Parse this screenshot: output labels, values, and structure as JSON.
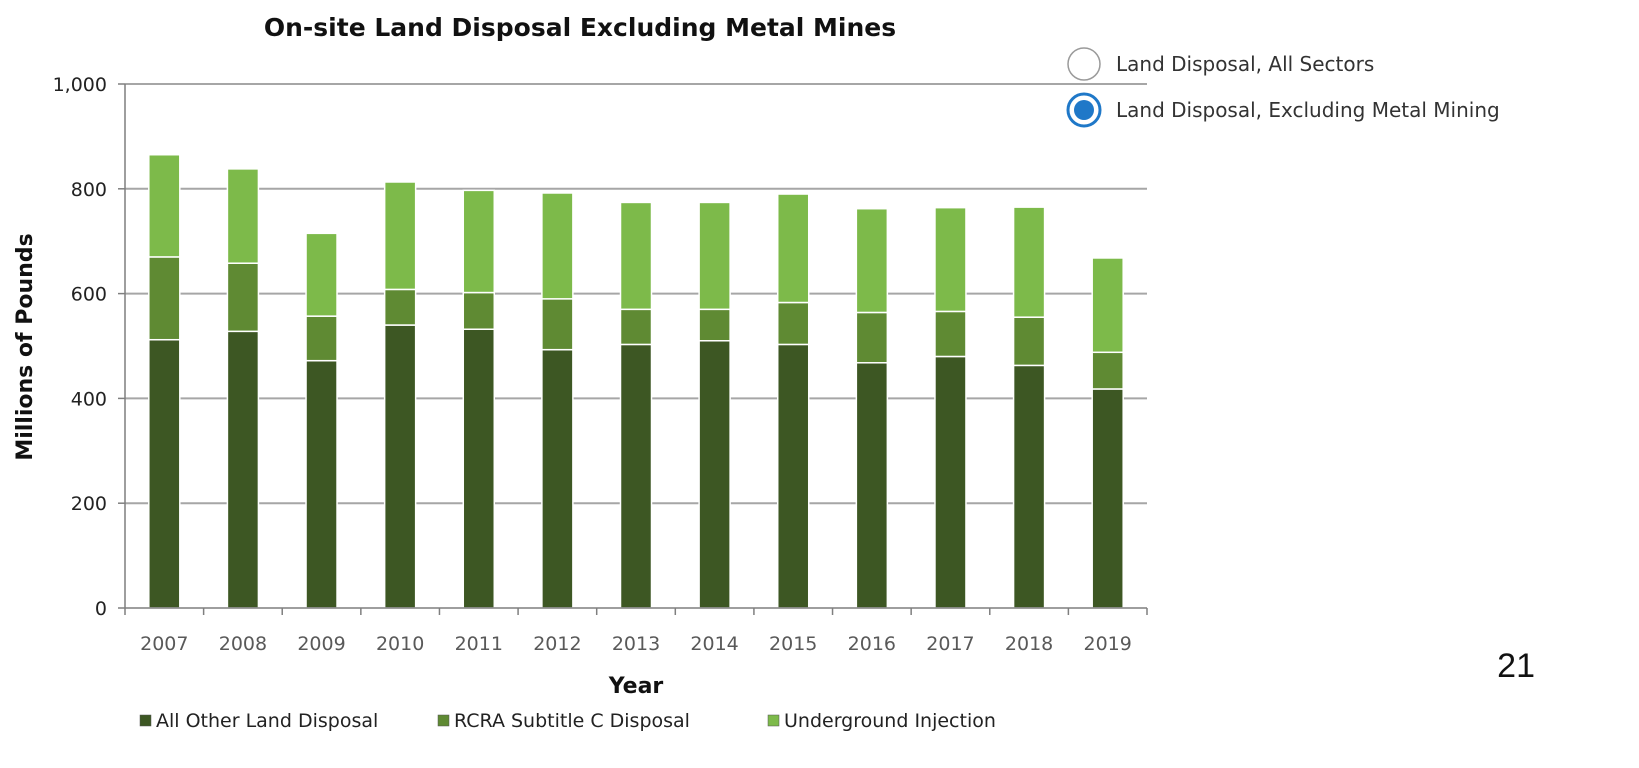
{
  "chart_data": {
    "type": "bar",
    "stacked": true,
    "title": "On-site Land Disposal Excluding Metal Mines",
    "xlabel": "Year",
    "ylabel": "Millions of Pounds",
    "ylim": [
      0,
      1000
    ],
    "yticks": [
      0,
      200,
      400,
      600,
      800,
      1000
    ],
    "ytick_labels": [
      "0",
      "200",
      "400",
      "600",
      "800",
      "1,000"
    ],
    "grid": true,
    "legend_position": "bottom",
    "categories": [
      "2007",
      "2008",
      "2009",
      "2010",
      "2011",
      "2012",
      "2013",
      "2014",
      "2015",
      "2016",
      "2017",
      "2018",
      "2019"
    ],
    "series": [
      {
        "name": "All Other Land Disposal",
        "color": "#3d5723",
        "values": [
          512,
          528,
          472,
          540,
          532,
          493,
          503,
          510,
          503,
          468,
          480,
          463,
          418
        ]
      },
      {
        "name": "RCRA Subtitle C Disposal",
        "color": "#5f8a33",
        "values": [
          158,
          130,
          85,
          68,
          70,
          97,
          67,
          60,
          80,
          96,
          86,
          92,
          70
        ]
      },
      {
        "name": "Underground Injection",
        "color": "#7dba4a",
        "values": [
          195,
          180,
          158,
          205,
          195,
          202,
          204,
          204,
          207,
          198,
          198,
          210,
          180
        ]
      }
    ]
  },
  "view_options": [
    {
      "label": "Land Disposal, All Sectors",
      "selected": false
    },
    {
      "label": "Land Disposal, Excluding Metal Mining",
      "selected": true
    }
  ],
  "colors": {
    "radio_selected": "#1f78c8",
    "radio_border": "#9a9a9a",
    "grid": "#a6a6a6",
    "axis": "#7f7f7f"
  },
  "page_number": "21"
}
